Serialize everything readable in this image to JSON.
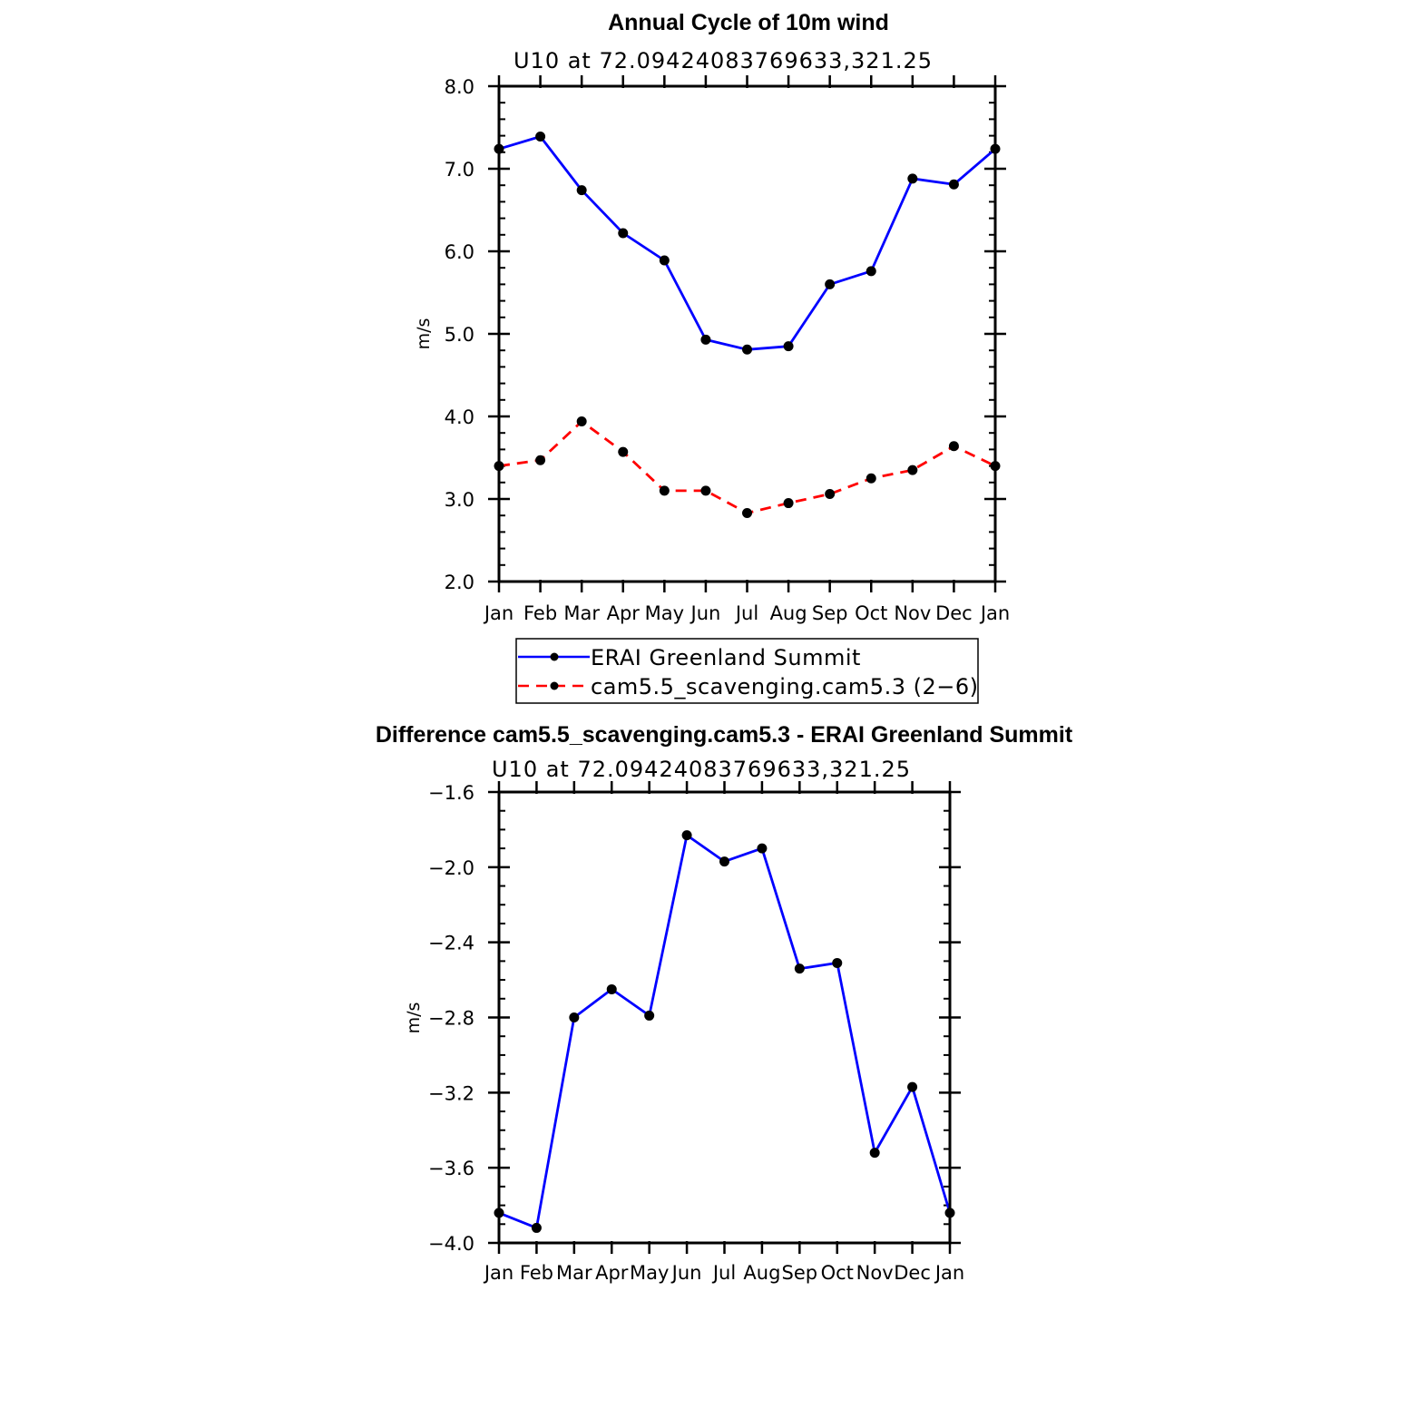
{
  "chart_data": [
    {
      "type": "line",
      "title": "Annual Cycle of 10m wind",
      "subtitle": "U10  at  72.09424083769633,321.25",
      "ylabel": "m/s",
      "xlabel": "",
      "categories": [
        "Jan",
        "Feb",
        "Mar",
        "Apr",
        "May",
        "Jun",
        "Jul",
        "Aug",
        "Sep",
        "Oct",
        "Nov",
        "Dec",
        "Jan"
      ],
      "ylim": [
        2.0,
        8.0
      ],
      "yticks": [
        "2.0",
        "3.0",
        "4.0",
        "5.0",
        "6.0",
        "7.0",
        "8.0"
      ],
      "legend_position": "bottom",
      "series": [
        {
          "name": "ERAI Greenland Summit",
          "color": "#0000ff",
          "dash": "solid",
          "values": [
            7.24,
            7.39,
            6.74,
            6.22,
            5.89,
            4.93,
            4.81,
            4.85,
            5.6,
            5.76,
            6.88,
            6.81,
            7.24
          ]
        },
        {
          "name": "cam5.5_scavenging.cam5.3 (2−6)",
          "color": "#ff0000",
          "dash": "dashed",
          "values": [
            3.4,
            3.47,
            3.94,
            3.57,
            3.1,
            3.1,
            2.83,
            2.95,
            3.06,
            3.25,
            3.35,
            3.64,
            3.4
          ]
        }
      ]
    },
    {
      "type": "line",
      "title": "Difference cam5.5_scavenging.cam5.3 - ERAI Greenland Summit",
      "subtitle": "U10  at  72.09424083769633,321.25",
      "ylabel": "m/s",
      "xlabel": "",
      "categories": [
        "Jan",
        "Feb",
        "Mar",
        "Apr",
        "May",
        "Jun",
        "Jul",
        "Aug",
        "Sep",
        "Oct",
        "Nov",
        "Dec",
        "Jan"
      ],
      "ylim": [
        -4.0,
        -1.6
      ],
      "yticks": [
        "−4.0",
        "−3.6",
        "−3.2",
        "−2.8",
        "−2.4",
        "−2.0",
        "−1.6"
      ],
      "series": [
        {
          "color": "#0000ff",
          "dash": "solid",
          "values": [
            -3.84,
            -3.92,
            -2.8,
            -2.65,
            -2.79,
            -1.83,
            -1.97,
            -1.9,
            -2.54,
            -2.51,
            -3.52,
            -3.17,
            -3.84
          ]
        }
      ]
    }
  ]
}
